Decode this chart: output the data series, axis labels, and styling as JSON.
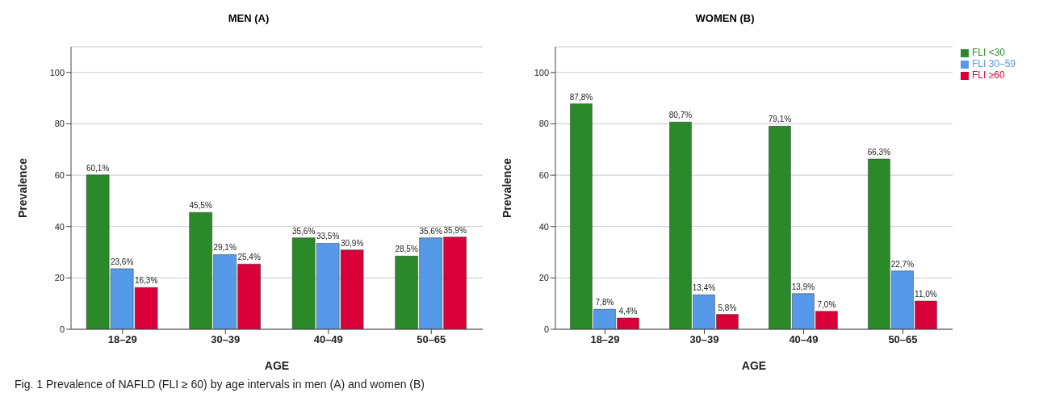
{
  "chart_data": [
    {
      "type": "bar",
      "title": "MEN (A)",
      "xlabel": "AGE",
      "ylabel": "Prevalence",
      "categories": [
        "18–29",
        "30–39",
        "40–49",
        "50–65"
      ],
      "series": [
        {
          "color": "#2a8a2a",
          "values": [
            60.1,
            45.5,
            35.6,
            28.5
          ],
          "value_labels": [
            "60,1%",
            "45,5%",
            "35,6%",
            "28,5%"
          ]
        },
        {
          "color": "#5599e8",
          "values": [
            23.6,
            29.1,
            33.5,
            35.6
          ],
          "value_labels": [
            "23,6%",
            "29,1%",
            "33,5%",
            "35,6%"
          ]
        },
        {
          "color": "#d9003a",
          "values": [
            16.3,
            25.4,
            30.9,
            35.9
          ],
          "value_labels": [
            "16,3%",
            "25,4%",
            "30,9%",
            "35,9%"
          ]
        }
      ],
      "ylim": [
        0,
        110
      ],
      "yticks": [
        0,
        20,
        40,
        60,
        80,
        100
      ],
      "grid": "y",
      "legend": false
    },
    {
      "type": "bar",
      "title": "WOMEN (B)",
      "xlabel": "AGE",
      "ylabel": "Prevalence",
      "categories": [
        "18–29",
        "30–39",
        "40–49",
        "50–65"
      ],
      "series": [
        {
          "name": "FLI <30",
          "color": "#2a8a2a",
          "values": [
            87.8,
            80.7,
            79.1,
            66.3
          ],
          "value_labels": [
            "87,8%",
            "80,7%",
            "79,1%",
            "66,3%"
          ]
        },
        {
          "name": "FLI 30–59",
          "color": "#5599e8",
          "values": [
            7.8,
            13.4,
            13.9,
            22.7
          ],
          "value_labels": [
            "7,8%",
            "13,4%",
            "13,9%",
            "22,7%"
          ]
        },
        {
          "name": "FLI ≥60",
          "color": "#d9003a",
          "values": [
            4.4,
            5.8,
            7.0,
            11.0
          ],
          "value_labels": [
            "4,4%",
            "5,8%",
            "7,0%",
            "11,0%"
          ]
        }
      ],
      "ylim": [
        0,
        110
      ],
      "yticks": [
        0,
        20,
        40,
        60,
        80,
        100
      ],
      "grid": "y",
      "legend": "top right",
      "annotations": [
        "Fig. 1  Prevalence of NAFLD (FLI ≥ 60) by age intervals in men (A) and women (B)"
      ]
    }
  ]
}
